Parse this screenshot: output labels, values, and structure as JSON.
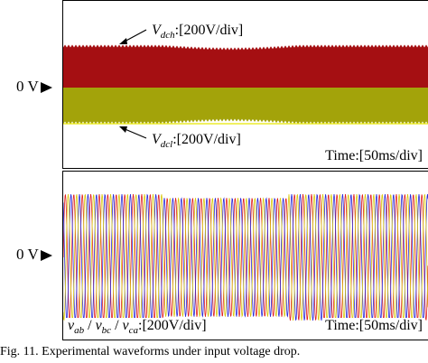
{
  "top_panel": {
    "zero_label": "0 V",
    "vdch_label": {
      "symbol": "V",
      "subscript": "dch",
      "scale": ":[200V/div]"
    },
    "vdcl_label": {
      "symbol": "V",
      "subscript": "dcl",
      "scale": ":[200V/div]"
    },
    "time_label": "Time:[50ms/div]",
    "colors": {
      "upper_band": "#a50f12",
      "lower_band": "#a3a30a",
      "zero_line": "#000000"
    }
  },
  "bottom_panel": {
    "zero_label": "0 V",
    "signals_label": {
      "v1": "v",
      "s1": "ab",
      "v2": "v",
      "s2": "bc",
      "v3": "v",
      "s3": "ca",
      "scale": ":[200V/div]"
    },
    "time_label": "Time:[50ms/div]",
    "colors": {
      "phase_ab": "#e12020",
      "phase_bc": "#2b2bd9",
      "phase_ca": "#d8c810"
    }
  },
  "caption": "Fig. 11. Experimental waveforms under input voltage drop."
}
